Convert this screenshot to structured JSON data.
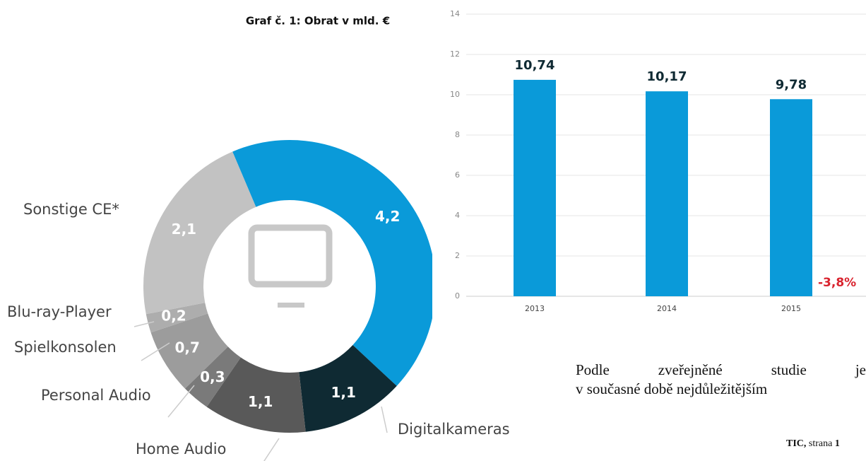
{
  "chart_data": [
    {
      "type": "donut",
      "categories": [
        null,
        "Digitalkameras",
        "Home Audio",
        "Personal Audio",
        "Spielkonsolen",
        "Blu-ray-Player",
        "Sonstige CE*"
      ],
      "values": [
        4.2,
        1.1,
        1.1,
        0.3,
        0.7,
        0.2,
        2.1
      ],
      "value_labels": [
        "4,2",
        "1,1",
        "1,1",
        "0,3",
        "0,7",
        "0,2",
        "2,1"
      ],
      "colors": [
        "#0a9ad9",
        "#0f2a33",
        "#595959",
        "#7a7a7a",
        "#9c9c9c",
        "#adadad",
        "#c2c2c2"
      ]
    },
    {
      "type": "bar",
      "title": "Graf č. 1: Obrat v mld. €",
      "categories": [
        "2013",
        "2014",
        "2015"
      ],
      "values": [
        10.74,
        10.17,
        9.78
      ],
      "value_labels": [
        "10,74",
        "10,17",
        "9,78"
      ],
      "color": "#0a9ad9",
      "ylim": [
        0,
        14
      ],
      "yticks": [
        0,
        2,
        4,
        6,
        8,
        10,
        12,
        14
      ],
      "grid": true,
      "annotation": "-3,8%"
    }
  ],
  "document": {
    "paragraph": [
      "Podle zveřejněné studie je",
      "v současné době nejdůležitějším"
    ],
    "footer": {
      "source": "TIC,",
      "text": "strana",
      "page": "1"
    }
  }
}
